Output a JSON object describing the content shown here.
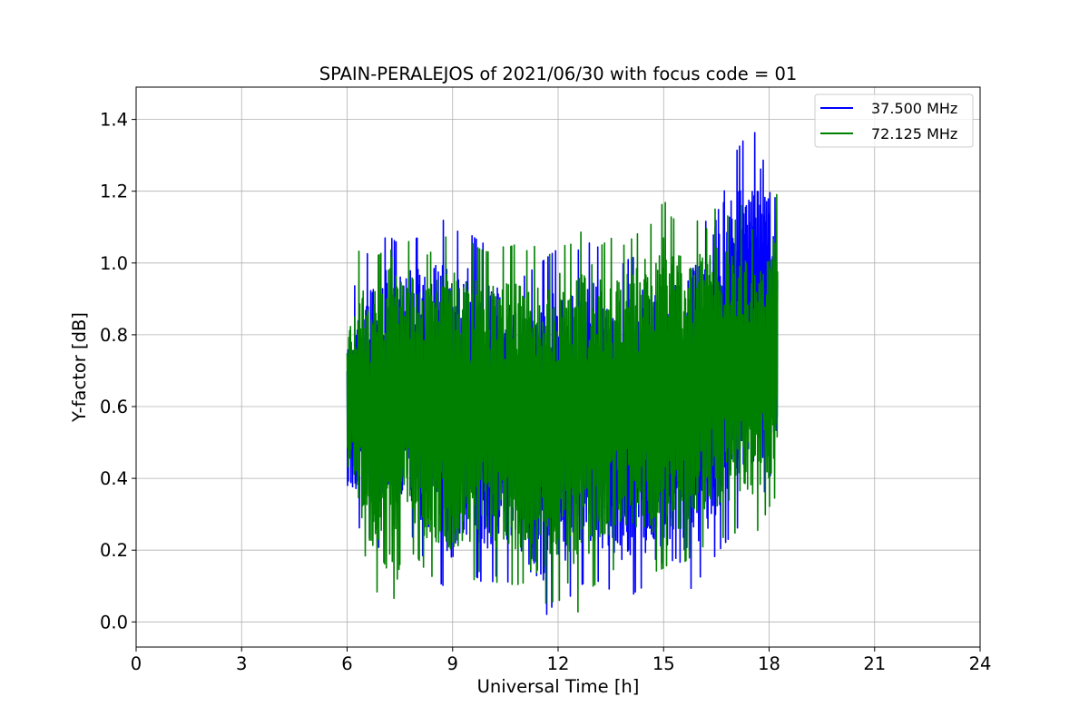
{
  "chart_data": {
    "type": "line",
    "title": "SPAIN-PERALEJOS of 2021/06/30 with focus code = 01",
    "xlabel": "Universal Time [h]",
    "ylabel": "Y-factor [dB]",
    "xlim": [
      0,
      24
    ],
    "ylim": [
      -0.07,
      1.49
    ],
    "xticks": [
      0,
      3,
      6,
      9,
      12,
      15,
      18,
      21,
      24
    ],
    "xtick_labels": [
      "0",
      "3",
      "6",
      "9",
      "12",
      "15",
      "18",
      "21",
      "24"
    ],
    "yticks": [
      0.0,
      0.2,
      0.4,
      0.6,
      0.8,
      1.0,
      1.2,
      1.4
    ],
    "ytick_labels": [
      "0.0",
      "0.2",
      "0.4",
      "0.6",
      "0.8",
      "1.0",
      "1.2",
      "1.4"
    ],
    "grid": true,
    "legend_position": "top-right",
    "series": [
      {
        "name": "37.500 MHz",
        "color": "#0000ff",
        "x": [
          6.0,
          6.25,
          6.5,
          6.75,
          7.0,
          7.25,
          7.5,
          7.75,
          8.0,
          8.25,
          8.5,
          8.75,
          9.0,
          9.25,
          9.5,
          9.75,
          10.0,
          10.25,
          10.5,
          10.75,
          11.0,
          11.25,
          11.5,
          11.75,
          12.0,
          12.25,
          12.5,
          12.75,
          13.0,
          13.25,
          13.5,
          13.75,
          14.0,
          14.25,
          14.5,
          14.75,
          15.0,
          15.25,
          15.5,
          15.75,
          16.0,
          16.25,
          16.5,
          16.75,
          17.0,
          17.25,
          17.5,
          17.75,
          18.0,
          18.25
        ],
        "min": [
          0.33,
          0.27,
          0.25,
          0.22,
          0.2,
          0.24,
          0.26,
          0.25,
          0.22,
          0.16,
          0.12,
          0.1,
          0.06,
          0.1,
          0.14,
          0.12,
          0.09,
          0.13,
          0.12,
          0.09,
          0.05,
          0.02,
          0.0,
          0.03,
          0.07,
          0.06,
          0.09,
          0.11,
          0.13,
          0.1,
          0.09,
          0.07,
          0.06,
          0.09,
          0.1,
          0.08,
          0.06,
          0.07,
          0.06,
          0.09,
          0.12,
          0.15,
          0.19,
          0.22,
          0.25,
          0.28,
          0.3,
          0.33,
          0.4,
          0.45
        ],
        "max": [
          0.85,
          0.95,
          1.02,
          1.04,
          1.07,
          1.07,
          1.05,
          1.06,
          1.07,
          1.09,
          1.1,
          1.12,
          1.1,
          1.08,
          1.08,
          1.06,
          1.05,
          1.03,
          1.0,
          0.98,
          0.96,
          0.98,
          1.0,
          1.02,
          1.04,
          1.02,
          1.03,
          1.05,
          1.06,
          1.03,
          1.0,
          0.99,
          1.01,
          1.02,
          1.04,
          1.03,
          1.02,
          1.04,
          1.06,
          1.08,
          1.1,
          1.12,
          1.24,
          1.34,
          1.3,
          1.34,
          1.33,
          1.42,
          1.35,
          1.1
        ]
      },
      {
        "name": "72.125 MHz",
        "color": "#008000",
        "x": [
          6.0,
          6.25,
          6.5,
          6.75,
          7.0,
          7.25,
          7.5,
          7.75,
          8.0,
          8.25,
          8.5,
          8.75,
          9.0,
          9.25,
          9.5,
          9.75,
          10.0,
          10.25,
          10.5,
          10.75,
          11.0,
          11.25,
          11.5,
          11.75,
          12.0,
          12.25,
          12.5,
          12.75,
          13.0,
          13.25,
          13.5,
          13.75,
          14.0,
          14.25,
          14.5,
          14.75,
          15.0,
          15.25,
          15.5,
          15.75,
          16.0,
          16.25,
          16.5,
          16.75,
          17.0,
          17.25,
          17.5,
          17.75,
          18.0,
          18.25
        ],
        "min": [
          0.38,
          0.22,
          0.19,
          0.1,
          0.06,
          0.02,
          0.16,
          0.2,
          0.18,
          0.14,
          0.12,
          0.14,
          0.09,
          0.12,
          0.1,
          0.14,
          0.15,
          0.11,
          0.12,
          0.1,
          0.11,
          0.0,
          0.04,
          0.06,
          0.05,
          0.12,
          0.01,
          0.08,
          0.1,
          0.12,
          0.14,
          0.16,
          0.17,
          0.15,
          0.16,
          0.14,
          0.15,
          0.17,
          0.16,
          0.18,
          0.2,
          0.22,
          0.22,
          0.24,
          0.25,
          0.23,
          0.22,
          0.27,
          0.32,
          0.36
        ],
        "max": [
          0.89,
          1.05,
          1.0,
          1.01,
          1.03,
          1.15,
          1.05,
          1.06,
          1.04,
          1.02,
          1.04,
          1.07,
          1.08,
          1.06,
          1.06,
          1.04,
          1.03,
          1.06,
          1.04,
          1.05,
          1.03,
          1.04,
          1.06,
          1.02,
          1.11,
          1.03,
          1.08,
          1.09,
          1.1,
          1.05,
          1.07,
          1.04,
          1.06,
          1.08,
          1.13,
          1.09,
          1.18,
          1.12,
          1.14,
          1.1,
          1.12,
          1.21,
          1.14,
          1.14,
          1.11,
          1.17,
          1.09,
          1.13,
          1.13,
          1.2
        ]
      }
    ]
  }
}
